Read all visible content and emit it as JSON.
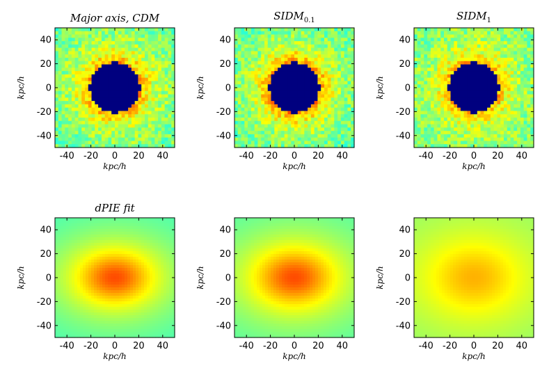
{
  "figure": {
    "background": "#ffffff"
  },
  "colormap": [
    "#00007f",
    "#0000ff",
    "#007fff",
    "#00ffff",
    "#7fff7f",
    "#ffff00",
    "#ff7f00",
    "#ff0000",
    "#7f0000"
  ],
  "chart_data": [
    {
      "type": "heatmap",
      "title": "Major axis, CDM",
      "xlabel": "kpc/h",
      "ylabel": "kpc/h",
      "xlim": [
        -50,
        50
      ],
      "ylim": [
        -50,
        50
      ],
      "xticks": [
        -40,
        -20,
        0,
        20,
        40
      ],
      "yticks": [
        -40,
        -20,
        0,
        20,
        40
      ],
      "xtick_labels": [
        "-40",
        "-20",
        "0",
        "20",
        "40"
      ],
      "ytick_labels": [
        "-40",
        "-20",
        "0",
        "20",
        "40"
      ],
      "field": "noisy_residual",
      "masked_radius": 21,
      "mask_color": "#00007f",
      "description_values": {
        "ring_level": 0.72,
        "edge_level": 0.48,
        "noise": 0.08
      }
    },
    {
      "type": "heatmap",
      "title_base": "SIDM",
      "title_sub": "0.1",
      "xlabel": "kpc/h",
      "ylabel": "kpc/h",
      "xlim": [
        -50,
        50
      ],
      "ylim": [
        -50,
        50
      ],
      "xticks": [
        -40,
        -20,
        0,
        20,
        40
      ],
      "yticks": [
        -40,
        -20,
        0,
        20,
        40
      ],
      "xtick_labels": [
        "-40",
        "-20",
        "0",
        "20",
        "40"
      ],
      "ytick_labels": [
        "-40",
        "-20",
        "0",
        "20",
        "40"
      ],
      "field": "noisy_residual",
      "masked_radius": 21,
      "mask_color": "#00007f",
      "description_values": {
        "ring_level": 0.74,
        "edge_level": 0.47,
        "noise": 0.08
      }
    },
    {
      "type": "heatmap",
      "title_base": "SIDM",
      "title_sub": "1",
      "xlabel": "kpc/h",
      "ylabel": "kpc/h",
      "xlim": [
        -50,
        50
      ],
      "ylim": [
        -50,
        50
      ],
      "xticks": [
        -40,
        -20,
        0,
        20,
        40
      ],
      "yticks": [
        -40,
        -20,
        0,
        20,
        40
      ],
      "xtick_labels": [
        "-40",
        "-20",
        "0",
        "20",
        "40"
      ],
      "ytick_labels": [
        "-40",
        "-20",
        "0",
        "20",
        "40"
      ],
      "field": "noisy_residual",
      "masked_radius": 21,
      "mask_color": "#00007f",
      "description_values": {
        "ring_level": 0.7,
        "edge_level": 0.49,
        "noise": 0.08
      }
    },
    {
      "type": "heatmap",
      "title": "dPIE fit",
      "xlabel": "kpc/h",
      "ylabel": "kpc/h",
      "xlim": [
        -50,
        50
      ],
      "ylim": [
        -50,
        50
      ],
      "xticks": [
        -40,
        -20,
        0,
        20,
        40
      ],
      "yticks": [
        -40,
        -20,
        0,
        20,
        40
      ],
      "xtick_labels": [
        "-40",
        "-20",
        "0",
        "20",
        "40"
      ],
      "ytick_labels": [
        "-40",
        "-20",
        "0",
        "20",
        "40"
      ],
      "field": "smooth_elliptical",
      "description_values": {
        "peak_level": 0.8,
        "edge_level": 0.4,
        "scale_x": 34,
        "scale_y": 24
      }
    },
    {
      "type": "heatmap",
      "title": "",
      "xlabel": "kpc/h",
      "ylabel": "kpc/h",
      "xlim": [
        -50,
        50
      ],
      "ylim": [
        -50,
        50
      ],
      "xticks": [
        -40,
        -20,
        0,
        20,
        40
      ],
      "yticks": [
        -40,
        -20,
        0,
        20,
        40
      ],
      "xtick_labels": [
        "-40",
        "-20",
        "0",
        "20",
        "40"
      ],
      "ytick_labels": [
        "-40",
        "-20",
        "0",
        "20",
        "40"
      ],
      "field": "smooth_elliptical",
      "description_values": {
        "peak_level": 0.8,
        "edge_level": 0.41,
        "scale_x": 36,
        "scale_y": 26
      }
    },
    {
      "type": "heatmap",
      "title": "",
      "xlabel": "kpc/h",
      "ylabel": "kpc/h",
      "xlim": [
        -50,
        50
      ],
      "ylim": [
        -50,
        50
      ],
      "xticks": [
        -40,
        -20,
        0,
        20,
        40
      ],
      "yticks": [
        -40,
        -20,
        0,
        20,
        40
      ],
      "xtick_labels": [
        "-40",
        "-20",
        "0",
        "20",
        "40"
      ],
      "ytick_labels": [
        "-40",
        "-20",
        "0",
        "20",
        "40"
      ],
      "field": "smooth_elliptical",
      "description_values": {
        "peak_level": 0.7,
        "edge_level": 0.48,
        "scale_x": 44,
        "scale_y": 34
      }
    }
  ]
}
